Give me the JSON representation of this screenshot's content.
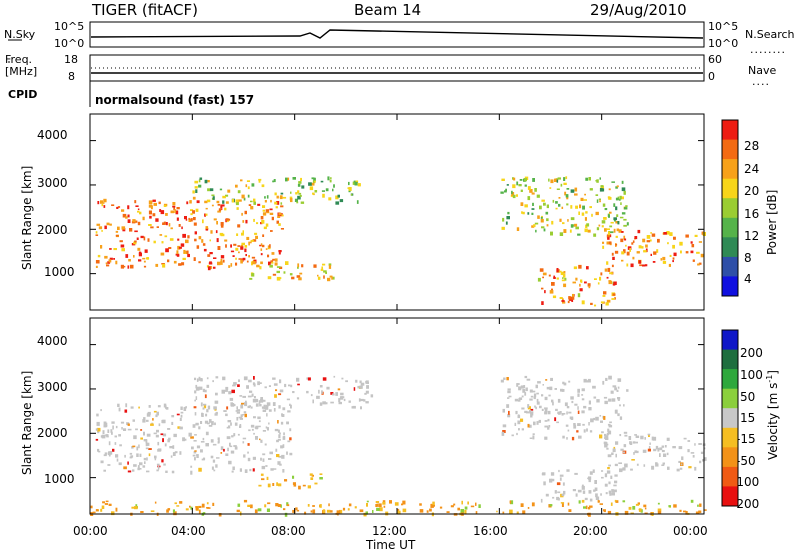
{
  "header": {
    "radar": "TIGER (fitACF)",
    "beam": "Beam 14",
    "date": "29/Aug/2010"
  },
  "status_panel": {
    "nsky_label": "N.Sky",
    "nsky_ticks": [
      "10^5",
      "10^0"
    ],
    "nsearch_label": "N.Search",
    "nsearch_ticks": [
      "10^5",
      "10^0"
    ],
    "freq_label": "Freq.",
    "freq_unit": "[MHz]",
    "freq_ticks": [
      "18",
      "8"
    ],
    "nave_label": "Nave",
    "nave_ticks": [
      "60",
      "0"
    ],
    "cpid_label": "CPID",
    "cpid_value": "normalsound (fast) 157"
  },
  "colors": {
    "power_scale": [
      "#1010e0",
      "#2e4fa8",
      "#2f8a55",
      "#55b34a",
      "#9acd32",
      "#f7d51a",
      "#f7a11a",
      "#f36a12",
      "#ee1c12"
    ],
    "velocity_scale": [
      "#e81010",
      "#f05a14",
      "#f39218",
      "#f5be22",
      "#c8c8c8",
      "#8bcf3c",
      "#2fa83c",
      "#1f6e3f",
      "#1018c8"
    ],
    "ground_scatter": "#c4c4c4"
  },
  "chart_data": [
    {
      "type": "heatmap",
      "panel": "power",
      "xlabel": "Time UT",
      "ylabel": "Slant Range [km]",
      "xlim": [
        0,
        24
      ],
      "ylim": [
        180,
        4600
      ],
      "x_ticks": [
        "00:00",
        "04:00",
        "08:00",
        "12:00",
        "16:00",
        "20:00",
        "00:00"
      ],
      "y_ticks": [
        "1000",
        "2000",
        "3000",
        "4000"
      ],
      "colorbar": {
        "label": "Power [dB]",
        "ticks": [
          "4",
          "8",
          "12",
          "16",
          "20",
          "24",
          "28"
        ],
        "range": [
          0,
          32
        ]
      },
      "features": [
        {
          "t0": 0.2,
          "t1": 7.5,
          "r0": 1150,
          "r1": 2700,
          "power": 27
        },
        {
          "t0": 4.0,
          "t1": 10.5,
          "r0": 2600,
          "r1": 3200,
          "power": 16
        },
        {
          "t0": 6.0,
          "t1": 9.5,
          "r0": 900,
          "r1": 1300,
          "power": 22
        },
        {
          "t0": 16.0,
          "t1": 21.0,
          "r0": 1900,
          "r1": 3200,
          "power": 17
        },
        {
          "t0": 17.5,
          "t1": 20.5,
          "r0": 300,
          "r1": 1200,
          "power": 25
        },
        {
          "t0": 20.0,
          "t1": 24.0,
          "r0": 1200,
          "r1": 2000,
          "power": 26
        }
      ]
    },
    {
      "type": "heatmap",
      "panel": "velocity",
      "xlabel": "Time UT",
      "ylabel": "Slant Range [km]",
      "xlim": [
        0,
        24
      ],
      "ylim": [
        180,
        4600
      ],
      "x_ticks": [
        "00:00",
        "04:00",
        "08:00",
        "12:00",
        "16:00",
        "20:00",
        "00:00"
      ],
      "y_ticks": [
        "1000",
        "2000",
        "3000",
        "4000"
      ],
      "colorbar": {
        "label": "Velocity [m s^-1]",
        "ticks": [
          "200",
          "100",
          "50",
          "15",
          "-15",
          "-50",
          "-100",
          "-200"
        ]
      },
      "features": [
        {
          "t0": 0.2,
          "t1": 7.8,
          "r0": 1150,
          "r1": 2700,
          "velocity": 0
        },
        {
          "t0": 4.0,
          "t1": 11.0,
          "r0": 2600,
          "r1": 3300,
          "velocity": 0
        },
        {
          "t0": 6.5,
          "t1": 9.0,
          "r0": 800,
          "r1": 1100,
          "velocity": -60
        },
        {
          "t0": 16.0,
          "t1": 21.0,
          "r0": 1900,
          "r1": 3300,
          "velocity": 0
        },
        {
          "t0": 17.5,
          "t1": 20.5,
          "r0": 500,
          "r1": 1200,
          "velocity": 0
        },
        {
          "t0": 20.0,
          "t1": 24.0,
          "r0": 1200,
          "r1": 2000,
          "velocity": 0
        },
        {
          "t0": 0.0,
          "t1": 24.0,
          "r0": 200,
          "r1": 500,
          "velocity": -40
        }
      ]
    }
  ]
}
